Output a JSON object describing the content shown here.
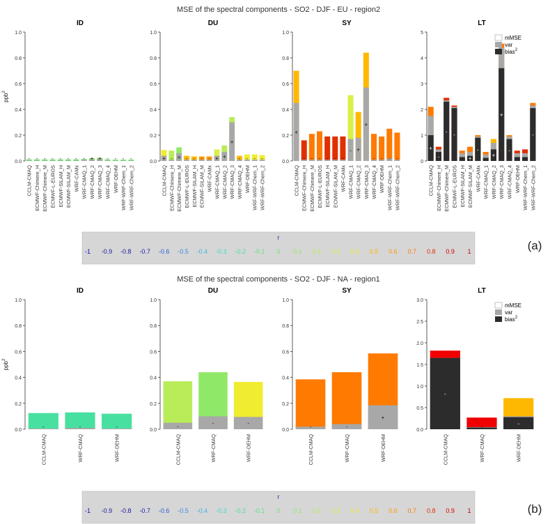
{
  "figure": {
    "panel_labels": [
      "(a)",
      "(b)"
    ],
    "ylabel": "ppb",
    "ylabel_sup": "2",
    "legend": {
      "mmse": "mMSE",
      "var": "var",
      "bias": "bias",
      "bias_sup": "2"
    },
    "colorbar": {
      "title": "r",
      "ticks": [
        "-1",
        "-0.9",
        "-0.8",
        "-0.7",
        "-0.6",
        "-0.5",
        "-0.4",
        "-0.3",
        "-0.2",
        "-0.1",
        "0",
        "0.1",
        "0.2",
        "0.3",
        "0.4",
        "0.5",
        "0.6",
        "0.7",
        "0.8",
        "0.9",
        "1"
      ],
      "colors": [
        "#1010c0",
        "#1a1aa0",
        "#1a1aa0",
        "#2020b0",
        "#2a60d8",
        "#3a8ae0",
        "#40b8e0",
        "#40d8c8",
        "#48e0a0",
        "#60e080",
        "#70e070",
        "#90e868",
        "#b8ec58",
        "#d8f048",
        "#f0ec30",
        "#ffb800",
        "#ff9a00",
        "#ff7a00",
        "#e03000",
        "#d00000",
        "#b80000"
      ]
    },
    "colors": {
      "var": "#a8a8a8",
      "bias": "#2c2c2c"
    }
  },
  "chart_data": [
    {
      "type": "bar",
      "title": "MSE  of the spectral components  -  SO2 - DJF - EU - region2",
      "models": [
        "CCLM-CMAQ",
        "ECMWF-Chimere_H",
        "ECMWF-Chimere_M",
        "ECMWF-L-EUROS",
        "ECMWF-SILAM_H",
        "ECMWF-SILAM_M",
        "WRF-CAMx",
        "WRF-CMAQ_1",
        "WRF-CMAQ_2",
        "WRF-CMAQ_3",
        "WRF-CMAQ_4",
        "WRF-DEHM",
        "WRF-WRF-Chem_1",
        "WRF-WRF-Chem_2"
      ],
      "panels": [
        {
          "name": "ID",
          "ylim": [
            0,
            1.0
          ],
          "yticks": [
            "0.0",
            "0.2",
            "0.4",
            "0.6",
            "0.8",
            "1.0"
          ],
          "total": [
            0.012,
            0.012,
            0.012,
            0.012,
            0.012,
            0.012,
            0.012,
            0.015,
            0.022,
            0.025,
            0.012,
            0.01,
            0.01,
            0.01
          ],
          "var": [
            0.002,
            0.002,
            0.002,
            0.002,
            0.002,
            0.002,
            0.002,
            0.008,
            0.012,
            0.015,
            0.002,
            0.002,
            0.002,
            0.002
          ],
          "bias": [
            0.0,
            0.0,
            0.0,
            0.0,
            0.0,
            0.0,
            0.0,
            0.0,
            0.0,
            0.0,
            0.0,
            0.0,
            0.0,
            0.0
          ],
          "color": [
            "#70e070",
            "#70e070",
            "#70e070",
            "#70e070",
            "#70e070",
            "#70e070",
            "#70e070",
            "#70e070",
            "#90e868",
            "#90e868",
            "#70e070",
            "#70e070",
            "#70e070",
            "#70e070"
          ],
          "markers": [
            "-",
            "-",
            "-",
            "-",
            "-",
            "-",
            "-",
            "-",
            "+",
            "+",
            "-",
            "-",
            "-",
            "-"
          ]
        },
        {
          "name": "DU",
          "ylim": [
            0,
            1.0
          ],
          "yticks": [
            "0.0",
            "0.2",
            "0.4",
            "0.6",
            "0.8",
            "1.0"
          ],
          "total": [
            0.085,
            0.08,
            0.105,
            0.04,
            0.035,
            0.035,
            0.035,
            0.09,
            0.12,
            0.34,
            0.04,
            0.05,
            0.05,
            0.045
          ],
          "var": [
            0.04,
            0.01,
            0.06,
            0.01,
            0.01,
            0.01,
            0.01,
            0.04,
            0.07,
            0.3,
            0.01,
            0.01,
            0.01,
            0.01
          ],
          "bias": [
            0.0,
            0.0,
            0.0,
            0.0,
            0.0,
            0.0,
            0.0,
            0.0,
            0.0,
            0.0,
            0.0,
            0.0,
            0.0,
            0.0
          ],
          "color": [
            "#f0ec30",
            "#b8ec58",
            "#90e868",
            "#ffb800",
            "#ffb800",
            "#ff9a00",
            "#ff9a00",
            "#d8f048",
            "#b8ec58",
            "#b8ec58",
            "#ffb800",
            "#f0ec30",
            "#f0ec30",
            "#f0ec30"
          ],
          "markers": [
            "+",
            "-",
            "+",
            "-",
            "-",
            "-",
            "-",
            "+",
            "+",
            "+",
            "-",
            "-",
            "-",
            "-"
          ]
        },
        {
          "name": "SY",
          "ylim": [
            0,
            1.0
          ],
          "yticks": [
            "0.0",
            "0.2",
            "0.4",
            "0.6",
            "0.8",
            "1.0"
          ],
          "total": [
            0.7,
            0.16,
            0.21,
            0.23,
            0.19,
            0.19,
            0.19,
            0.51,
            0.38,
            0.84,
            0.21,
            0.19,
            0.25,
            0.22
          ],
          "var": [
            0.45,
            0.01,
            0.01,
            0.01,
            0.01,
            0.01,
            0.01,
            0.17,
            0.18,
            0.57,
            0.01,
            0.01,
            0.02,
            0.01
          ],
          "bias": [
            0.0,
            0.0,
            0.0,
            0.0,
            0.0,
            0.0,
            0.0,
            0.0,
            0.0,
            0.0,
            0.0,
            0.0,
            0.0,
            0.0
          ],
          "color": [
            "#ffb800",
            "#e03000",
            "#ff7a00",
            "#ff7a00",
            "#e03000",
            "#e03000",
            "#e03000",
            "#d8f048",
            "#ffb800",
            "#ffb800",
            "#ff7a00",
            "#ff7a00",
            "#ff7a00",
            "#ff7a00"
          ],
          "markers": [
            "+",
            "-",
            "-",
            "-",
            "-",
            "-",
            "-",
            "-",
            "+",
            "+",
            "-",
            "-",
            "-",
            "-"
          ]
        },
        {
          "name": "LT",
          "ylim": [
            0,
            5
          ],
          "yticks": [
            "0",
            "1",
            "2",
            "3",
            "4",
            "5"
          ],
          "total": [
            2.1,
            0.55,
            2.45,
            2.15,
            0.4,
            0.55,
            1.0,
            0.35,
            0.85,
            4.55,
            1.0,
            0.4,
            0.45,
            2.25
          ],
          "var": [
            1.75,
            0.45,
            2.35,
            2.1,
            0.3,
            0.35,
            0.95,
            0.25,
            0.7,
            4.4,
            0.95,
            0.3,
            0.3,
            2.15
          ],
          "bias": [
            1.0,
            0.35,
            2.3,
            2.05,
            0.15,
            0.2,
            0.9,
            0.12,
            0.45,
            3.6,
            0.85,
            0.15,
            0.15,
            2.05
          ],
          "color": [
            "#ff7a00",
            "#e03000",
            "#e03000",
            "#e03000",
            "#ff7a00",
            "#ff7a00",
            "#ff7a00",
            "#ff7a00",
            "#ffb800",
            "#ff7a00",
            "#ff7a00",
            "#e03000",
            "#e03000",
            "#ff7a00"
          ],
          "markers": [
            "+",
            "-",
            "-",
            "-",
            "-",
            "+",
            "-",
            "-",
            "+",
            "+",
            "-",
            "-",
            "-",
            "-"
          ]
        }
      ]
    },
    {
      "type": "bar",
      "title": "MSE  of the spectral components  -  SO2 - DJF - NA - region1",
      "models": [
        "CCLM-CMAQ",
        "WRF-CMAQ",
        "WRF-DEHM"
      ],
      "panels": [
        {
          "name": "ID",
          "ylim": [
            0,
            1.0
          ],
          "yticks": [
            "0.0",
            "0.2",
            "0.4",
            "0.6",
            "0.8",
            "1.0"
          ],
          "total": [
            0.125,
            0.13,
            0.12
          ],
          "var": [
            0.005,
            0.01,
            0.005
          ],
          "bias": [
            0.0,
            0.0,
            0.0
          ],
          "color": [
            "#48e0a0",
            "#48e0a0",
            "#48e0a0"
          ],
          "markers": [
            "-",
            "-",
            "-"
          ]
        },
        {
          "name": "DU",
          "ylim": [
            0,
            1.0
          ],
          "yticks": [
            "0.0",
            "0.2",
            "0.4",
            "0.6",
            "0.8",
            "1.0"
          ],
          "total": [
            0.37,
            0.44,
            0.365
          ],
          "var": [
            0.05,
            0.1,
            0.095
          ],
          "bias": [
            0.0,
            0.0,
            0.0
          ],
          "color": [
            "#b8ec58",
            "#90e868",
            "#f0ec30"
          ],
          "markers": [
            "-",
            "-",
            "-"
          ]
        },
        {
          "name": "SY",
          "ylim": [
            0,
            1.0
          ],
          "yticks": [
            "0.0",
            "0.2",
            "0.4",
            "0.6",
            "0.8",
            "1.0"
          ],
          "total": [
            0.385,
            0.44,
            0.585
          ],
          "var": [
            0.02,
            0.04,
            0.185
          ],
          "bias": [
            0.0,
            0.0,
            0.0
          ],
          "color": [
            "#ff7a00",
            "#ff7a00",
            "#ff7a00"
          ],
          "markers": [
            "-",
            "-",
            "+"
          ]
        },
        {
          "name": "LT",
          "ylim": [
            0,
            3.0
          ],
          "yticks": [
            "0.0",
            "0.5",
            "1.0",
            "1.5",
            "2.0",
            "2.5",
            "3.0"
          ],
          "total": [
            1.82,
            0.27,
            0.72
          ],
          "var": [
            1.65,
            0.05,
            0.3
          ],
          "bias": [
            1.65,
            0.04,
            0.28
          ],
          "color": [
            "#f00000",
            "#f00000",
            "#ffb800"
          ],
          "markers": [
            "-",
            "-",
            "-"
          ]
        }
      ]
    }
  ]
}
